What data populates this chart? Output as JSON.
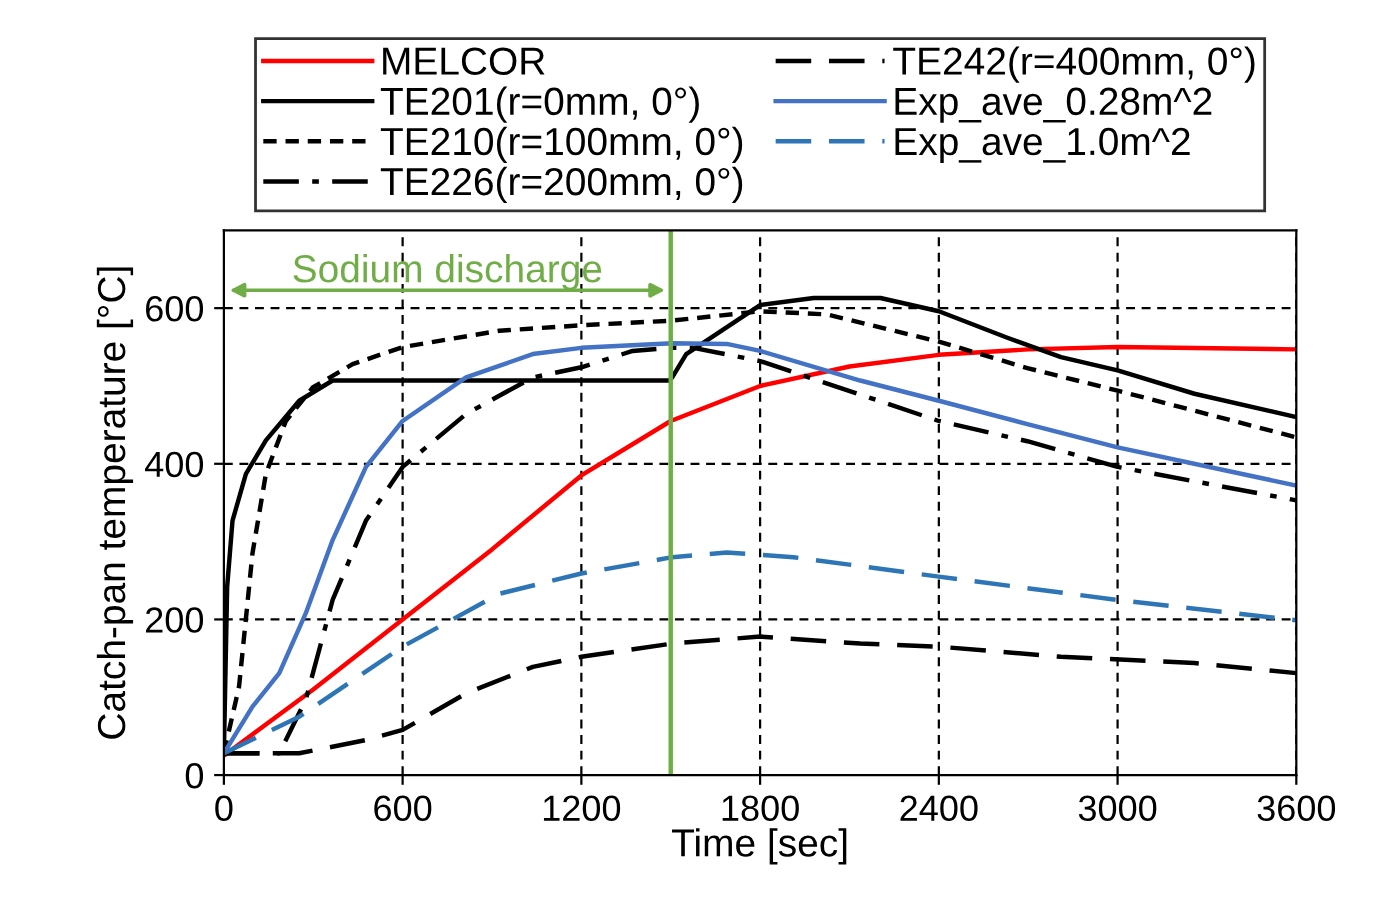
{
  "chart_data": {
    "type": "line",
    "xlabel": "Time [sec]",
    "ylabel": "Catch-pan temperature [°C]",
    "xlim": [
      0,
      3600
    ],
    "xticks": [
      0,
      600,
      1200,
      1800,
      2400,
      3000,
      3600
    ],
    "ylim": [
      0,
      700
    ],
    "yticks": [
      0,
      200,
      400,
      600
    ],
    "grid": true,
    "legend": "top",
    "marker": "none",
    "ref_lines": [
      {
        "axis": "x",
        "value": 1500,
        "label": "Sodium discharge",
        "color": "#70ad47",
        "line_style": "solid"
      }
    ],
    "series": [
      {
        "name": "MELCOR",
        "color": "#ff0000",
        "line_style": "solid",
        "x": [
          0,
          300,
          600,
          900,
          1200,
          1500,
          1800,
          2100,
          2400,
          2700,
          3000,
          3600
        ],
        "values": [
          25,
          110,
          200,
          290,
          385,
          455,
          500,
          525,
          540,
          547,
          550,
          547
        ]
      },
      {
        "name": "TE201(r=0mm, 0°)",
        "color": "#000000",
        "line_style": "solid",
        "x": [
          0,
          11,
          29,
          74,
          141,
          253,
          365,
          1496,
          1505,
          1552,
          1800,
          1980,
          2204,
          2400,
          2630,
          2810,
          3000,
          3258,
          3600
        ],
        "values": [
          28,
          242,
          327,
          387,
          430,
          481,
          507,
          507,
          511,
          541,
          604,
          613,
          613,
          596,
          562,
          537,
          520,
          490,
          460
        ]
      },
      {
        "name": "TE210(r=100mm, 0°)",
        "color": "#000000",
        "line_style": "dotted",
        "x": [
          0,
          51,
          96,
          141,
          208,
          298,
          432,
          600,
          925,
          1200,
          1505,
          1800,
          2024,
          2400,
          2697,
          3000,
          3600
        ],
        "values": [
          28,
          114,
          285,
          387,
          455,
          498,
          528,
          550,
          571,
          578,
          584,
          596,
          592,
          557,
          523,
          494,
          434
        ]
      },
      {
        "name": "TE226(r=200mm, 0°)",
        "color": "#000000",
        "line_style": "dashdot",
        "x": [
          0,
          186,
          275,
          365,
          477,
          600,
          813,
          1037,
          1200,
          1372,
          1505,
          1576,
          1800,
          2136,
          2400,
          2697,
          3000,
          3600
        ],
        "values": [
          28,
          28,
          97,
          225,
          327,
          396,
          464,
          511,
          524,
          545,
          549,
          549,
          532,
          489,
          455,
          429,
          396,
          353
        ]
      },
      {
        "name": "TE242(r=400mm, 0°)",
        "color": "#000000",
        "line_style": "dashed",
        "x": [
          0,
          253,
          477,
          600,
          813,
          1037,
          1200,
          1505,
          1800,
          2136,
          2400,
          2810,
          3258,
          3600
        ],
        "values": [
          28,
          28,
          45,
          58,
          105,
          139,
          152,
          169,
          178,
          169,
          165,
          152,
          144,
          131
        ]
      },
      {
        "name": "Exp_ave_0.28m^2",
        "color": "#4472c4",
        "line_style": "solid",
        "x": [
          0,
          96,
          186,
          275,
          365,
          477,
          600,
          813,
          1037,
          1200,
          1505,
          1688,
          1800,
          2136,
          2400,
          2697,
          3000,
          3600
        ],
        "values": [
          28,
          88,
          131,
          208,
          302,
          396,
          455,
          511,
          541,
          549,
          555,
          554,
          545,
          507,
          481,
          451,
          421,
          372
        ]
      },
      {
        "name": "Exp_ave_1.0m^2",
        "color": "#2e75b6",
        "line_style": "dashed",
        "x": [
          0,
          253,
          600,
          925,
          1200,
          1505,
          1688,
          1912,
          2400,
          3000,
          3600
        ],
        "values": [
          28,
          75,
          165,
          233,
          259,
          280,
          286,
          280,
          255,
          225,
          199
        ]
      }
    ]
  }
}
